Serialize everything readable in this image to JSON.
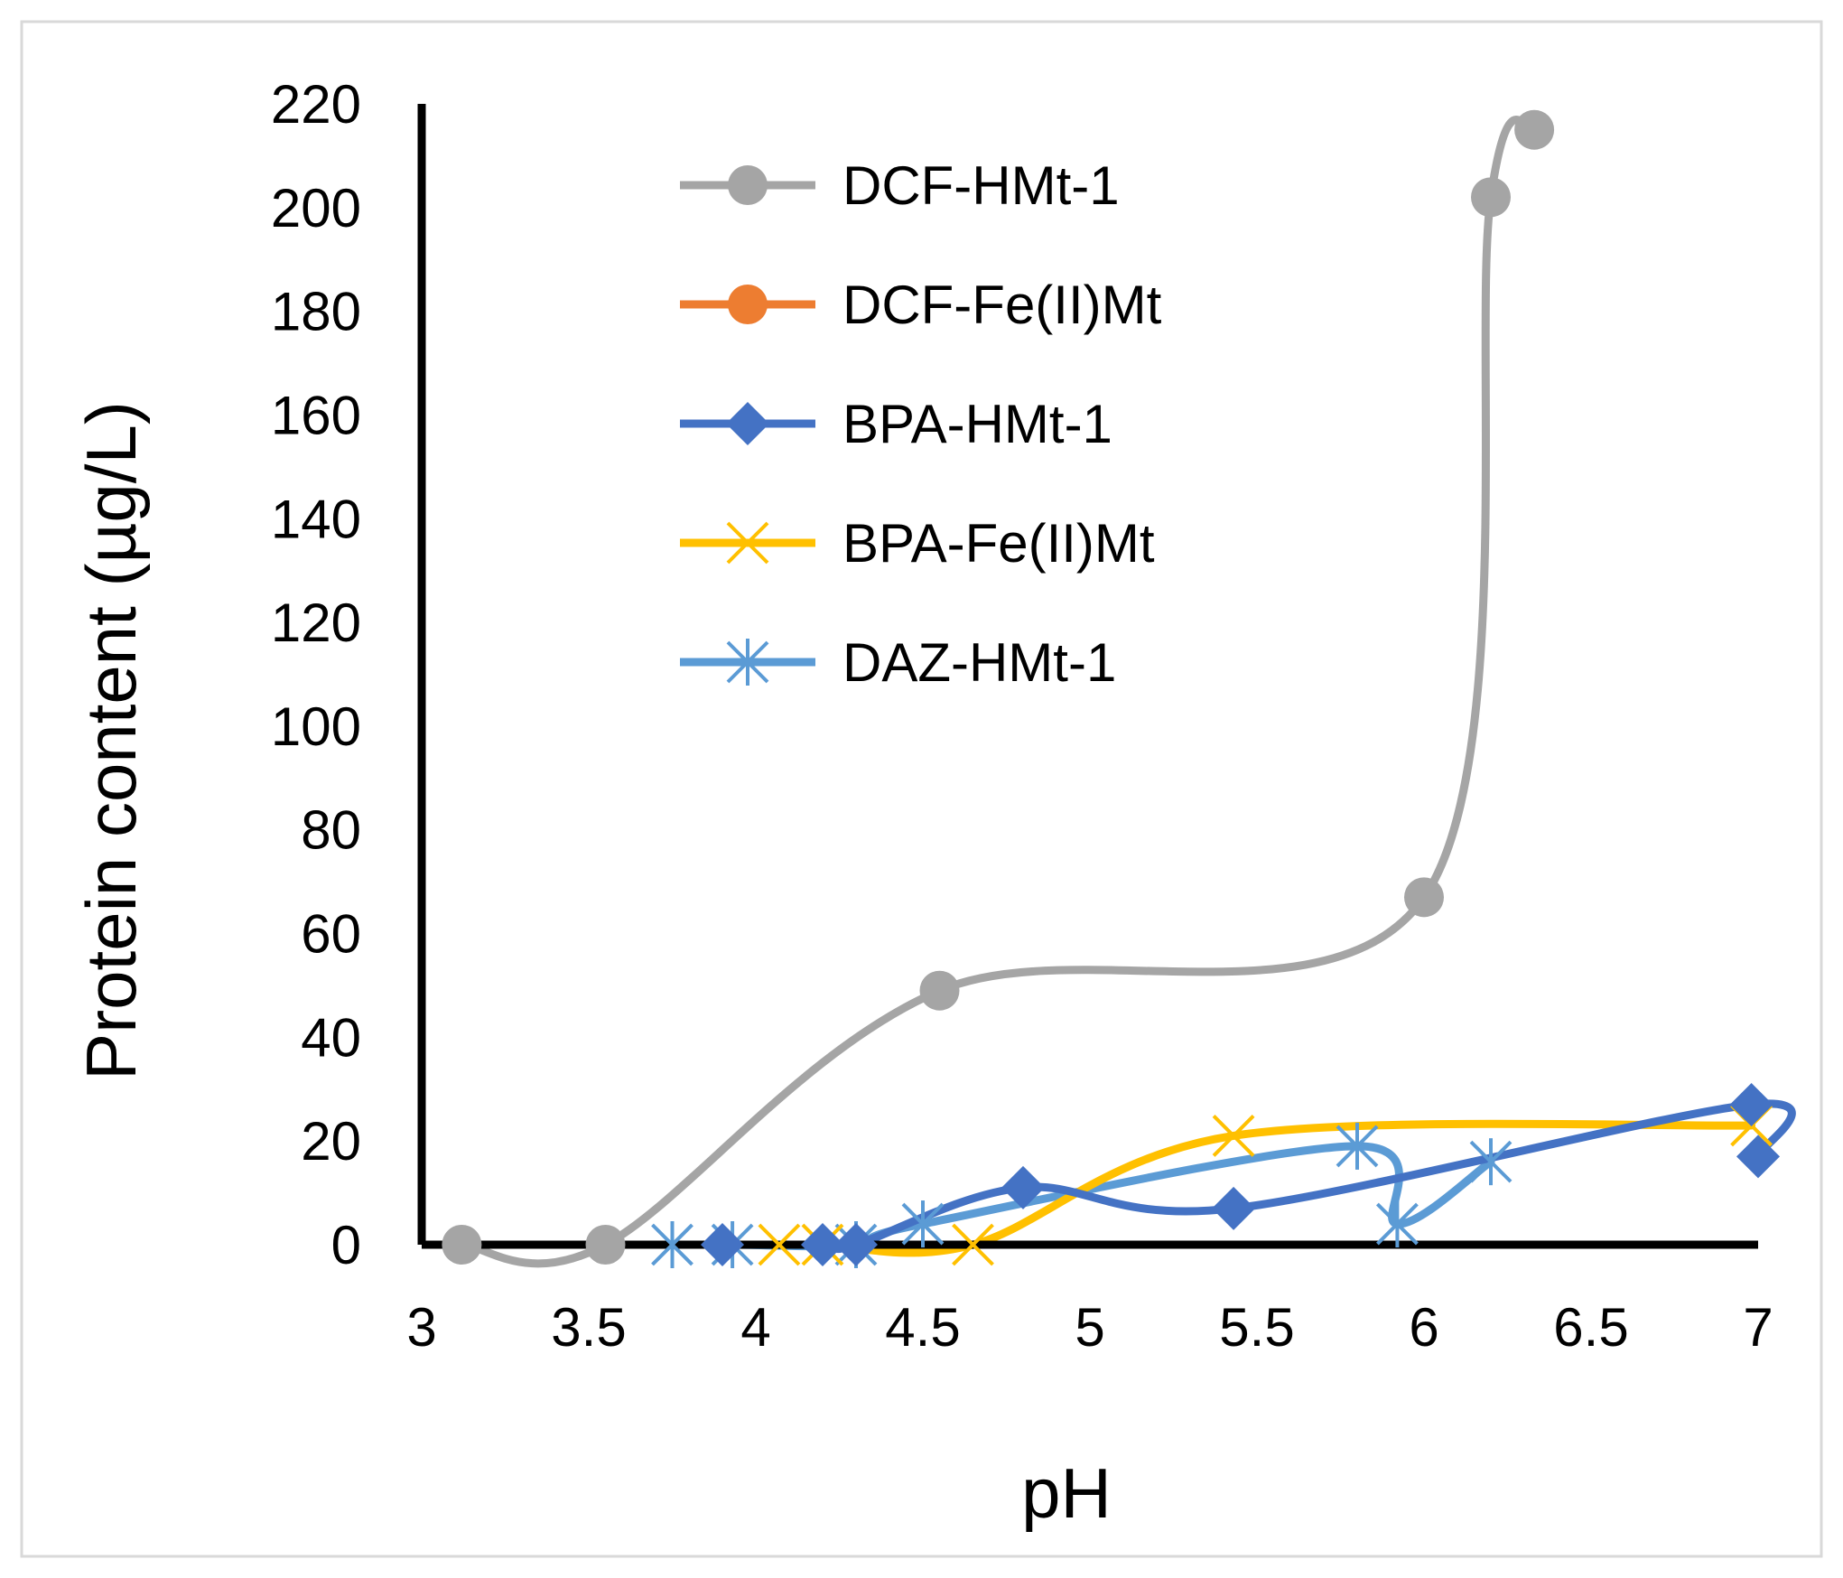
{
  "chart_data": {
    "type": "line",
    "title": "",
    "xlabel": "pH",
    "ylabel": "Protein content (µg/L)",
    "xlim": [
      3,
      7
    ],
    "ylim": [
      0,
      220
    ],
    "xticks": [
      "3",
      "3.5",
      "4",
      "4.5",
      "5",
      "5.5",
      "6",
      "6.5",
      "7"
    ],
    "yticks": [
      "0",
      "20",
      "40",
      "60",
      "80",
      "100",
      "120",
      "140",
      "160",
      "180",
      "200",
      "220"
    ],
    "grid": false,
    "legend_position": "top-center",
    "series": [
      {
        "name": "DCF-HMt-1",
        "color": "#A5A5A5",
        "marker": "circle",
        "x": [
          3.12,
          3.55,
          4.55,
          6.0,
          6.2,
          6.33
        ],
        "y": [
          0,
          0,
          49,
          67,
          202,
          215
        ]
      },
      {
        "name": "DCF-Fe(II)Mt",
        "color": "#ED7D31",
        "marker": "circle",
        "x": [],
        "y": []
      },
      {
        "name": "BPA-HMt-1",
        "color": "#4472C4",
        "marker": "diamond",
        "x": [
          3.9,
          4.2,
          4.3,
          4.8,
          5.43,
          6.98,
          7.0
        ],
        "y": [
          0,
          0,
          0,
          11,
          7,
          27,
          17
        ]
      },
      {
        "name": "BPA-Fe(II)Mt",
        "color": "#FFC000",
        "marker": "x",
        "x": [
          4.07,
          4.2,
          4.65,
          5.43,
          6.98
        ],
        "y": [
          0,
          0,
          0,
          21,
          23
        ]
      },
      {
        "name": "DAZ-HMt-1",
        "color": "#5B9BD5",
        "marker": "asterisk",
        "x": [
          3.75,
          3.93,
          4.3,
          4.5,
          5.8,
          5.92,
          6.2
        ],
        "y": [
          0,
          0,
          0,
          4,
          19,
          4,
          16
        ]
      }
    ]
  }
}
